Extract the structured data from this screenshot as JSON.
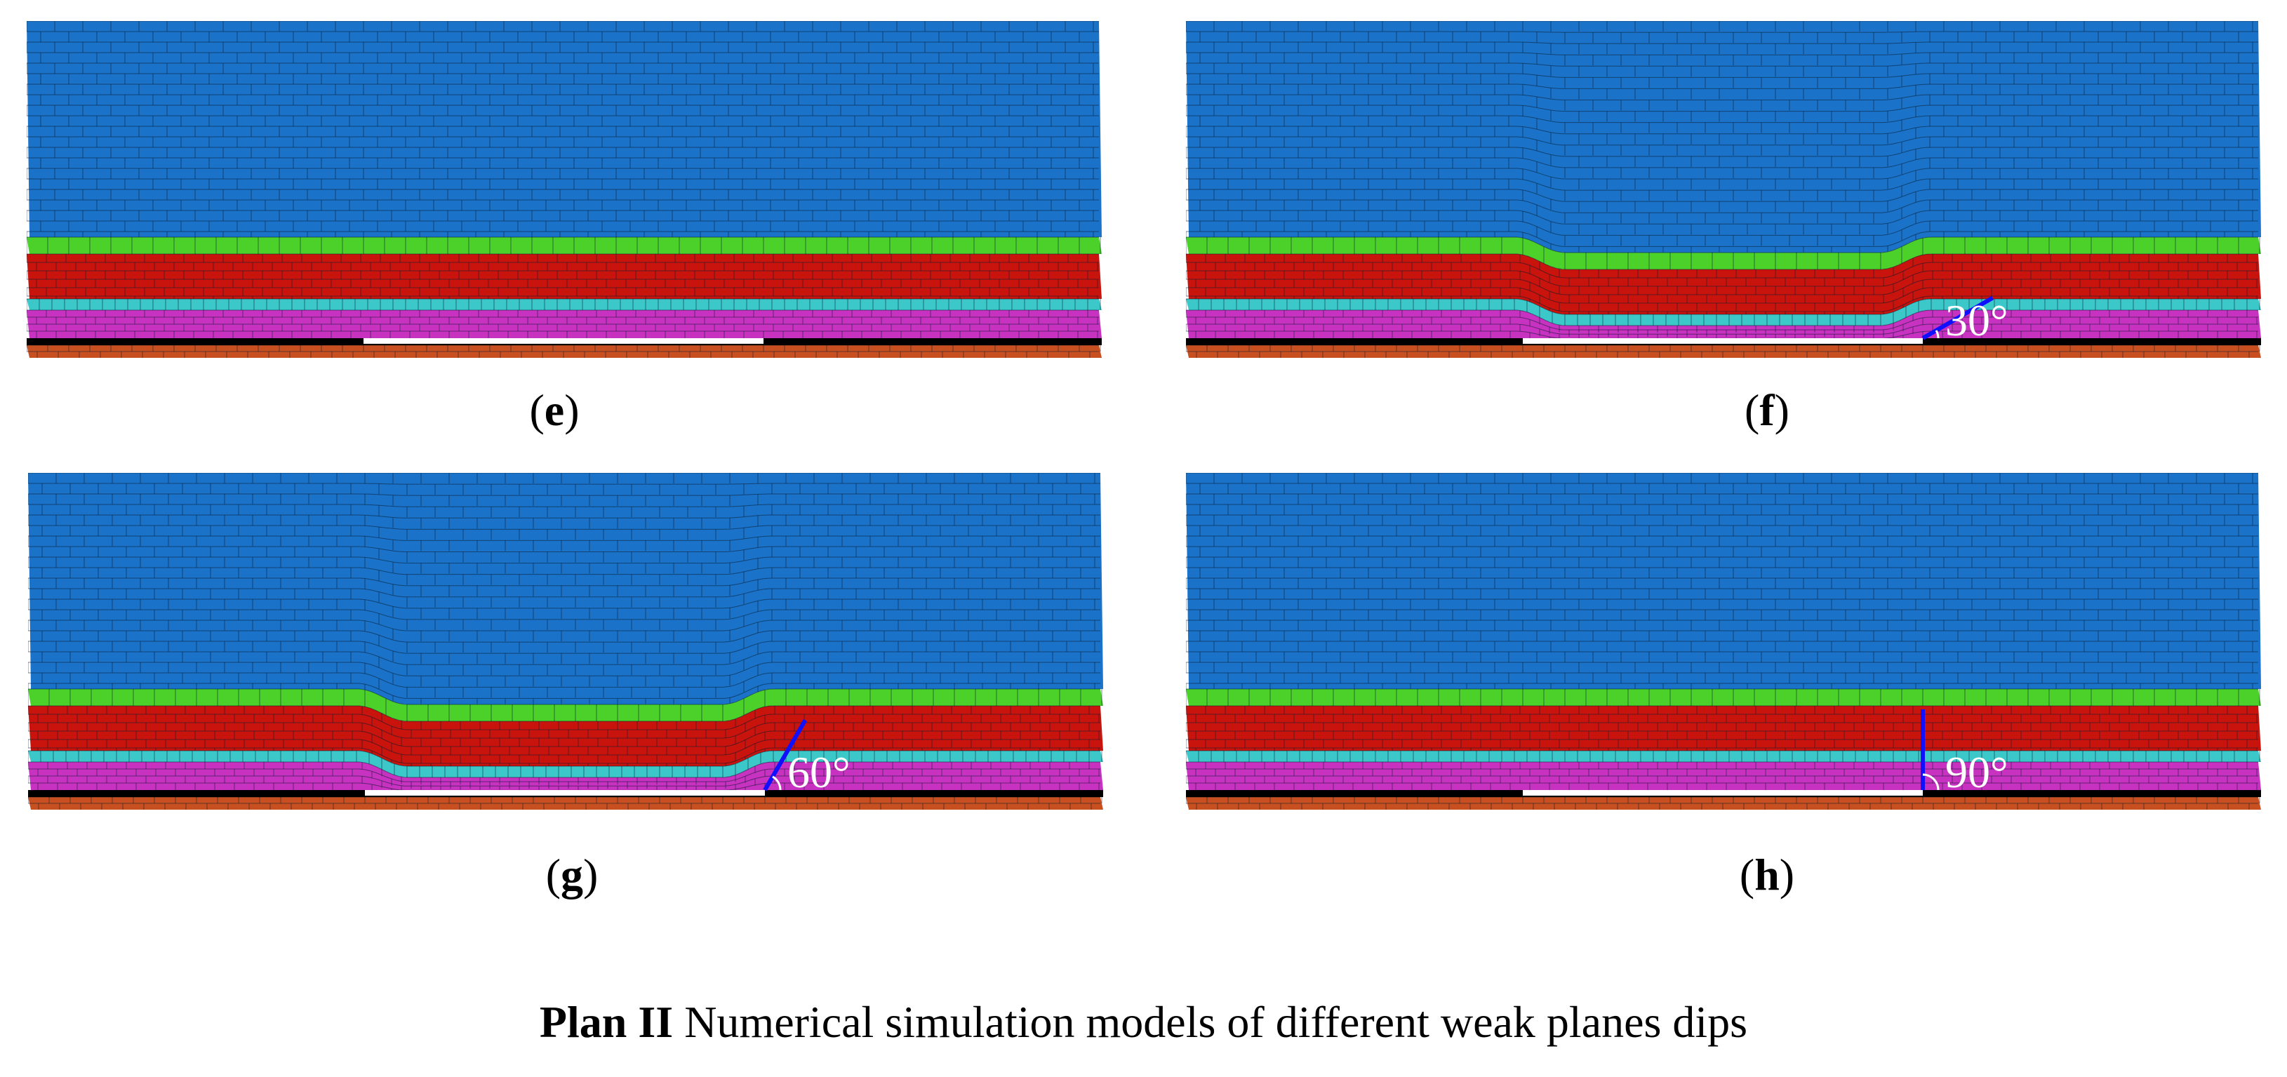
{
  "figure": {
    "caption_bold": "Plan II",
    "caption_rest": " Numerical simulation models of different weak planes dips",
    "colors": {
      "top_layer": "#1a73c8",
      "green_layer": "#4bd12a",
      "red_layer": "#c8140c",
      "cyan_layer": "#3cc8c8",
      "magenta_layer": "#c832c0",
      "bottom_layer": "#c85020",
      "mined_out": "#ffffff",
      "weak_plane": "#1010ff",
      "grid_lines": "#0a1a30"
    },
    "panels": [
      {
        "id": "e",
        "label": "e",
        "angle_text": "",
        "subsided": false,
        "angle": null
      },
      {
        "id": "f",
        "label": "f",
        "angle_text": "30°",
        "subsided": true,
        "angle": 30
      },
      {
        "id": "g",
        "label": "g",
        "angle_text": "60°",
        "subsided": true,
        "angle": 60
      },
      {
        "id": "h",
        "label": "h",
        "angle_text": "90°",
        "subsided": false,
        "angle": 90
      }
    ]
  }
}
